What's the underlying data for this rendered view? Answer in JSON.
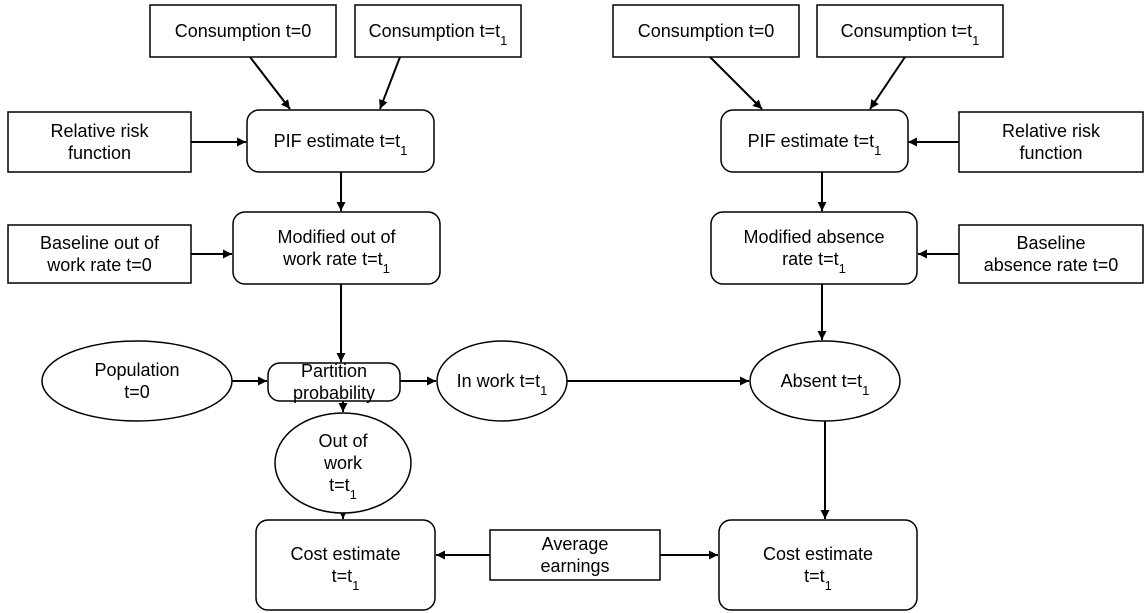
{
  "nodes": [
    {
      "lines": [
        [
          "Consumption t=0"
        ]
      ]
    },
    {
      "lines": [
        [
          "Consumption t=t",
          "1"
        ]
      ]
    },
    {
      "lines": [
        [
          "Relative risk"
        ],
        [
          "function"
        ]
      ]
    },
    {
      "lines": [
        [
          "PIF estimate t=t",
          "1"
        ]
      ]
    },
    {
      "lines": [
        [
          "Baseline out of"
        ],
        [
          "work rate t=0"
        ]
      ]
    },
    {
      "lines": [
        [
          "Modified out of"
        ],
        [
          "work rate t=t",
          "1"
        ]
      ]
    },
    {
      "lines": [
        [
          "Population"
        ],
        [
          "t=0"
        ]
      ]
    },
    {
      "lines": [
        [
          "Partition"
        ],
        [
          "probability"
        ]
      ]
    },
    {
      "lines": [
        [
          "In work t=t",
          "1"
        ]
      ]
    },
    {
      "lines": [
        [
          "Out of"
        ],
        [
          "work"
        ],
        [
          "t=t",
          "1"
        ]
      ]
    },
    {
      "lines": [
        [
          "Cost estimate"
        ],
        [
          "t=t",
          "1"
        ]
      ]
    },
    {
      "lines": [
        [
          "Average"
        ],
        [
          "earnings"
        ]
      ]
    },
    {
      "lines": [
        [
          "Consumption t=0"
        ]
      ]
    },
    {
      "lines": [
        [
          "Consumption t=t",
          "1"
        ]
      ]
    },
    {
      "lines": [
        [
          "PIF estimate t=t",
          "1"
        ]
      ]
    },
    {
      "lines": [
        [
          "Relative risk"
        ],
        [
          "function"
        ]
      ]
    },
    {
      "lines": [
        [
          "Modified absence"
        ],
        [
          "rate t=t",
          "1"
        ]
      ]
    },
    {
      "lines": [
        [
          "Baseline"
        ],
        [
          "absence rate t=0"
        ]
      ]
    },
    {
      "lines": [
        [
          "Absent t=t",
          "1"
        ]
      ]
    },
    {
      "lines": [
        [
          "Cost estimate"
        ],
        [
          "t=t",
          "1"
        ]
      ]
    }
  ]
}
